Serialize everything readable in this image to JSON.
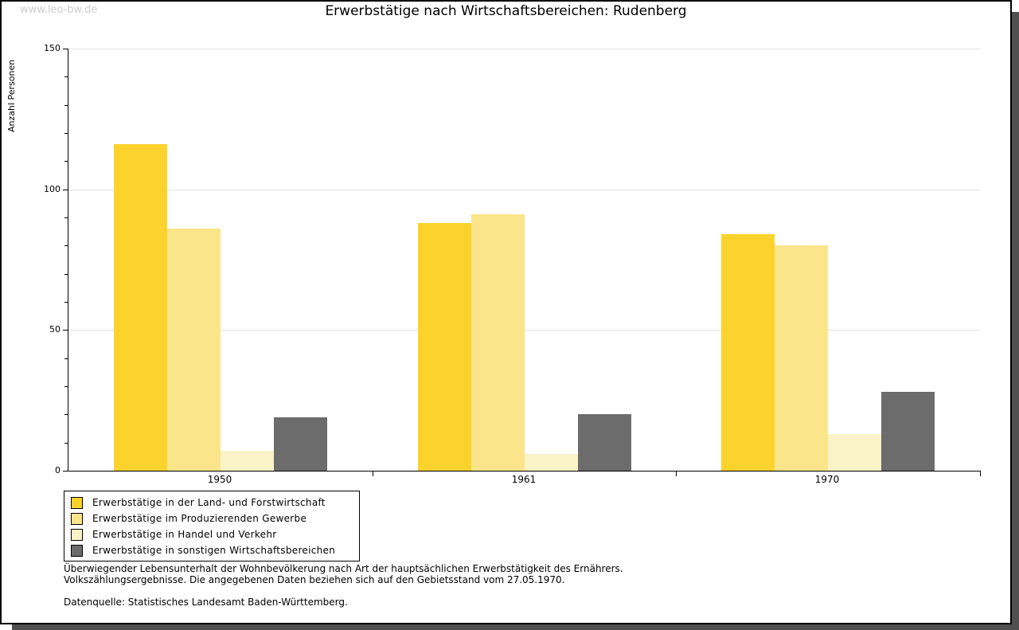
{
  "watermark": "www.leo-bw.de",
  "chart_data": {
    "type": "bar",
    "title": "Erwerbstätige nach Wirtschaftsbereichen: Rudenberg",
    "xlabel": "",
    "ylabel": "Anzahl Personen",
    "categories": [
      "1950",
      "1961",
      "1970"
    ],
    "series": [
      {
        "name": "Erwerbstätige in der Land- und Forstwirtschaft",
        "color": "#FCD32C",
        "values": [
          116,
          88,
          84
        ]
      },
      {
        "name": "Erwerbstätige im Produzierenden Gewerbe",
        "color": "#FBE58A",
        "values": [
          86,
          91,
          80
        ]
      },
      {
        "name": "Erwerbstätige in Handel und Verkehr",
        "color": "#FAF3C8",
        "values": [
          7,
          6,
          13
        ]
      },
      {
        "name": "Erwerbstätige in sonstigen Wirtschaftsbereichen",
        "color": "#6C6C6C",
        "values": [
          19,
          20,
          28
        ]
      }
    ],
    "ylim": [
      0,
      150
    ],
    "yticks": [
      0,
      50,
      100,
      150
    ],
    "minor_tick_step": 10,
    "grid": true,
    "legend_position": "bottom-left"
  },
  "footnotes": [
    "Überwiegender Lebensunterhalt der Wohnbevölkerung nach Art der hauptsächlichen Erwerbstätigkeit des Ernährers.",
    "Volkszählungsergebnisse. Die angegebenen Daten beziehen sich auf den Gebietsstand vom 27.05.1970."
  ],
  "source": "Datenquelle: Statistisches Landesamt Baden-Württemberg."
}
